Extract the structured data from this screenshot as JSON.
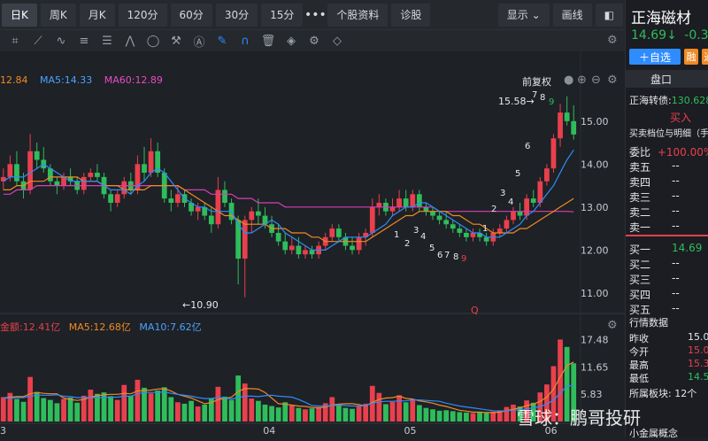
{
  "periods": [
    {
      "label": "日K",
      "active": true
    },
    {
      "label": "周K",
      "active": false
    },
    {
      "label": "月K",
      "active": false
    },
    {
      "label": "120分",
      "active": false
    },
    {
      "label": "60分",
      "active": false
    },
    {
      "label": "30分",
      "active": false
    },
    {
      "label": "15分",
      "active": false
    }
  ],
  "more_label": "•••",
  "top_tabs": [
    "个股资料",
    "诊股"
  ],
  "display_label": "显示",
  "draw_label": "画线",
  "price_legend": {
    "ma_prev": "12.84",
    "ma5": "MA5:14.33",
    "ma60": "MA60:12.89",
    "adjust": "前复权"
  },
  "price_axis": [
    "15.00",
    "14.00",
    "13.00",
    "12.00",
    "11.00"
  ],
  "annotations": {
    "high": "15.58→",
    "low": "←10.90",
    "q_marker": "Q"
  },
  "volume_legend": {
    "amount": "金额:12.41亿",
    "ma5": "MA5:12.68亿",
    "ma10": "MA10:7.62亿"
  },
  "volume_axis": [
    "17.48",
    "11.65",
    "5.83"
  ],
  "x_axis": [
    "3",
    "04",
    "05",
    "06"
  ],
  "td_counts_a": [
    "1",
    "2",
    "3",
    "4",
    "5",
    "6",
    "7",
    "8",
    "9"
  ],
  "td_counts_b": [
    "1",
    "2",
    "3",
    "4",
    "5",
    "6",
    "7",
    "8",
    "9"
  ],
  "stock": {
    "name": "正海磁材",
    "price": "14.69↓",
    "change": "-0.33",
    "add_watch": "＋自选",
    "tag1": "融",
    "tag2": "通"
  },
  "panel": {
    "tab": "盘口",
    "convert_label": "正海转债:",
    "convert_value": "130.628",
    "buy_label": "买入",
    "detail_label": "买卖档位与明细（手）",
    "ratio_label": "委比",
    "ratio_value": "+100.00%",
    "asks": [
      {
        "label": "卖五",
        "value": "--"
      },
      {
        "label": "卖四",
        "value": "--"
      },
      {
        "label": "卖三",
        "value": "--"
      },
      {
        "label": "卖二",
        "value": "--"
      },
      {
        "label": "卖一",
        "value": "--"
      }
    ],
    "bids": [
      {
        "label": "买一",
        "value": "14.69"
      },
      {
        "label": "买二",
        "value": "--"
      },
      {
        "label": "买三",
        "value": "--"
      },
      {
        "label": "买四",
        "value": "--"
      },
      {
        "label": "买五",
        "value": "--"
      }
    ],
    "quote_title": "行情数据",
    "quotes": [
      {
        "label": "昨收",
        "value": "15.02"
      },
      {
        "label": "今开",
        "value": "15.04"
      },
      {
        "label": "最高",
        "value": "15.37"
      },
      {
        "label": "最低",
        "value": "14.57"
      }
    ],
    "sector_label": "所属板块:",
    "sector_count": "12个",
    "concept": "小金属概念"
  },
  "watermark": "雪球：鹏哥投研",
  "colors": {
    "up": "#e8404d",
    "down": "#2fbd5c",
    "ma5": "#2f8cff",
    "ma10": "#f08a24",
    "ma60": "#d63fb5"
  },
  "chart_data": {
    "type": "candlestick",
    "y_range": [
      10.9,
      15.58
    ],
    "candles": [
      [
        13.6,
        13.9,
        13.4,
        13.7
      ],
      [
        13.7,
        14.2,
        13.6,
        14.0
      ],
      [
        14.0,
        14.3,
        13.5,
        13.6
      ],
      [
        13.6,
        13.8,
        13.2,
        13.4
      ],
      [
        13.4,
        14.7,
        13.3,
        14.3
      ],
      [
        14.3,
        14.5,
        13.9,
        14.1
      ],
      [
        14.1,
        14.4,
        13.8,
        13.9
      ],
      [
        13.9,
        14.0,
        13.5,
        13.6
      ],
      [
        13.6,
        13.7,
        13.3,
        13.5
      ],
      [
        13.5,
        13.8,
        13.4,
        13.7
      ],
      [
        13.7,
        13.9,
        13.5,
        13.6
      ],
      [
        13.6,
        13.7,
        13.3,
        13.4
      ],
      [
        13.4,
        13.8,
        13.3,
        13.7
      ],
      [
        13.7,
        13.9,
        13.6,
        13.8
      ],
      [
        13.8,
        14.0,
        13.6,
        13.7
      ],
      [
        13.7,
        13.8,
        13.2,
        13.3
      ],
      [
        13.3,
        13.4,
        12.9,
        13.1
      ],
      [
        13.1,
        13.4,
        13.0,
        13.3
      ],
      [
        13.3,
        13.7,
        13.2,
        13.6
      ],
      [
        13.6,
        13.8,
        13.3,
        13.4
      ],
      [
        13.4,
        14.2,
        13.3,
        14.0
      ],
      [
        14.0,
        14.4,
        13.6,
        13.8
      ],
      [
        13.8,
        14.6,
        13.7,
        14.3
      ],
      [
        14.3,
        14.5,
        13.7,
        13.8
      ],
      [
        13.8,
        13.9,
        13.1,
        13.2
      ],
      [
        13.2,
        13.4,
        12.9,
        13.1
      ],
      [
        13.1,
        13.5,
        13.0,
        13.3
      ],
      [
        13.3,
        13.4,
        13.0,
        13.1
      ],
      [
        13.1,
        13.2,
        12.8,
        12.9
      ],
      [
        12.9,
        13.1,
        12.7,
        13.0
      ],
      [
        13.0,
        13.1,
        12.7,
        12.8
      ],
      [
        12.8,
        13.0,
        12.4,
        12.6
      ],
      [
        12.6,
        13.7,
        12.5,
        13.4
      ],
      [
        13.4,
        13.6,
        13.0,
        13.1
      ],
      [
        13.1,
        13.2,
        12.6,
        12.7
      ],
      [
        12.7,
        12.8,
        11.2,
        11.8
      ],
      [
        11.8,
        12.8,
        10.9,
        12.7
      ],
      [
        12.7,
        13.0,
        12.4,
        12.9
      ],
      [
        12.9,
        13.2,
        12.6,
        12.8
      ],
      [
        12.8,
        13.0,
        12.5,
        12.6
      ],
      [
        12.6,
        12.8,
        12.3,
        12.4
      ],
      [
        12.4,
        12.6,
        12.1,
        12.2
      ],
      [
        12.2,
        12.4,
        11.9,
        12.0
      ],
      [
        12.0,
        12.3,
        11.9,
        12.1
      ],
      [
        12.1,
        12.3,
        11.8,
        11.9
      ],
      [
        11.9,
        12.1,
        11.8,
        12.0
      ],
      [
        12.0,
        12.1,
        11.8,
        11.9
      ],
      [
        11.9,
        12.2,
        11.8,
        12.1
      ],
      [
        12.1,
        12.4,
        12.0,
        12.3
      ],
      [
        12.3,
        12.6,
        12.2,
        12.5
      ],
      [
        12.5,
        12.6,
        12.2,
        12.3
      ],
      [
        12.3,
        12.4,
        12.0,
        12.1
      ],
      [
        12.1,
        12.3,
        11.9,
        12.0
      ],
      [
        12.0,
        12.4,
        11.9,
        12.3
      ],
      [
        12.3,
        12.5,
        12.1,
        12.4
      ],
      [
        12.4,
        13.2,
        12.3,
        13.0
      ],
      [
        13.0,
        13.3,
        12.8,
        13.1
      ],
      [
        13.1,
        13.2,
        12.8,
        12.9
      ],
      [
        12.9,
        13.2,
        12.8,
        13.0
      ],
      [
        13.0,
        13.4,
        12.9,
        13.2
      ],
      [
        13.2,
        13.4,
        12.9,
        13.0
      ],
      [
        13.0,
        13.4,
        12.9,
        13.3
      ],
      [
        13.3,
        13.4,
        12.9,
        13.0
      ],
      [
        13.0,
        13.1,
        12.8,
        12.9
      ],
      [
        12.9,
        13.0,
        12.7,
        12.8
      ],
      [
        12.8,
        12.9,
        12.6,
        12.7
      ],
      [
        12.7,
        12.9,
        12.5,
        12.6
      ],
      [
        12.6,
        12.7,
        12.4,
        12.5
      ],
      [
        12.5,
        12.6,
        12.3,
        12.4
      ],
      [
        12.4,
        12.5,
        12.2,
        12.3
      ],
      [
        12.3,
        12.5,
        12.2,
        12.4
      ],
      [
        12.4,
        12.5,
        12.2,
        12.3
      ],
      [
        12.3,
        12.4,
        12.1,
        12.2
      ],
      [
        12.2,
        12.5,
        12.1,
        12.4
      ],
      [
        12.4,
        12.6,
        12.3,
        12.5
      ],
      [
        12.5,
        12.8,
        12.4,
        12.7
      ],
      [
        12.7,
        13.0,
        12.6,
        12.9
      ],
      [
        12.9,
        13.1,
        12.7,
        12.8
      ],
      [
        12.8,
        13.3,
        12.7,
        13.2
      ],
      [
        13.2,
        13.4,
        13.0,
        13.1
      ],
      [
        13.1,
        13.7,
        13.0,
        13.6
      ],
      [
        13.6,
        14.0,
        13.5,
        13.9
      ],
      [
        13.9,
        14.7,
        13.8,
        14.6
      ],
      [
        14.6,
        15.4,
        14.4,
        15.2
      ],
      [
        15.2,
        15.58,
        14.9,
        15.0
      ],
      [
        15.0,
        15.37,
        14.57,
        14.69
      ]
    ],
    "ma5": [
      13.6,
      13.7,
      13.7,
      13.7,
      13.8,
      13.9,
      14.0,
      13.9,
      13.8,
      13.7,
      13.6,
      13.6,
      13.6,
      13.6,
      13.6,
      13.5,
      13.4,
      13.4,
      13.4,
      13.3,
      13.5,
      13.6,
      13.8,
      13.9,
      13.8,
      13.6,
      13.4,
      13.2,
      13.1,
      13.0,
      13.0,
      12.9,
      12.9,
      12.9,
      12.9,
      12.6,
      12.4,
      12.4,
      12.5,
      12.6,
      12.7,
      12.6,
      12.4,
      12.3,
      12.2,
      12.1,
      12.0,
      12.0,
      12.0,
      12.1,
      12.2,
      12.3,
      12.3,
      12.3,
      12.3,
      12.4,
      12.5,
      12.6,
      12.8,
      12.9,
      13.0,
      13.0,
      13.1,
      13.1,
      13.0,
      12.9,
      12.8,
      12.7,
      12.6,
      12.5,
      12.4,
      12.4,
      12.3,
      12.3,
      12.3,
      12.4,
      12.5,
      12.6,
      12.8,
      12.9,
      13.1,
      13.3,
      13.5,
      13.8,
      14.1,
      14.33
    ],
    "ma10": [
      13.4,
      13.4,
      13.5,
      13.5,
      13.6,
      13.6,
      13.6,
      13.7,
      13.7,
      13.7,
      13.7,
      13.7,
      13.6,
      13.6,
      13.6,
      13.5,
      13.5,
      13.5,
      13.4,
      13.4,
      13.4,
      13.4,
      13.5,
      13.5,
      13.5,
      13.5,
      13.5,
      13.4,
      13.3,
      13.2,
      13.1,
      13.0,
      12.9,
      12.8,
      12.8,
      12.7,
      12.6,
      12.6,
      12.6,
      12.6,
      12.5,
      12.5,
      12.5,
      12.4,
      12.4,
      12.4,
      12.3,
      12.3,
      12.2,
      12.2,
      12.2,
      12.2,
      12.2,
      12.2,
      12.2,
      12.3,
      12.4,
      12.5,
      12.6,
      12.7,
      12.8,
      12.8,
      12.9,
      12.9,
      12.9,
      12.9,
      12.9,
      12.8,
      12.8,
      12.7,
      12.6,
      12.6,
      12.5,
      12.4,
      12.4,
      12.4,
      12.4,
      12.5,
      12.5,
      12.6,
      12.7,
      12.8,
      12.9,
      13.0,
      13.1,
      13.2
    ],
    "ma60": [
      13.3,
      13.3,
      13.4,
      13.4,
      13.4,
      13.5,
      13.5,
      13.5,
      13.5,
      13.5,
      13.5,
      13.5,
      13.5,
      13.5,
      13.5,
      13.5,
      13.5,
      13.5,
      13.5,
      13.5,
      13.5,
      13.5,
      13.5,
      13.5,
      13.5,
      13.5,
      13.5,
      13.4,
      13.4,
      13.4,
      13.4,
      13.3,
      13.3,
      13.3,
      13.3,
      13.2,
      13.2,
      13.2,
      13.1,
      13.1,
      13.1,
      13.1,
      13.0,
      13.0,
      13.0,
      13.0,
      13.0,
      13.0,
      13.0,
      13.0,
      13.0,
      13.0,
      13.0,
      13.0,
      13.0,
      13.0,
      13.0,
      13.0,
      13.0,
      13.0,
      13.0,
      13.0,
      13.0,
      13.0,
      13.0,
      12.9,
      12.9,
      12.9,
      12.9,
      12.9,
      12.9,
      12.9,
      12.9,
      12.9,
      12.9,
      12.9,
      12.9,
      12.9,
      12.9,
      12.9,
      12.9,
      12.9,
      12.9,
      12.9,
      12.9,
      12.89
    ],
    "volume": [
      5.2,
      6.1,
      4.8,
      4.2,
      9.5,
      6.3,
      5.0,
      4.6,
      3.9,
      4.8,
      5.1,
      4.0,
      5.5,
      6.8,
      5.9,
      6.2,
      5.4,
      4.6,
      7.8,
      5.5,
      8.9,
      7.2,
      6.0,
      6.6,
      7.3,
      5.2,
      4.1,
      3.8,
      4.4,
      3.2,
      3.6,
      4.9,
      7.4,
      5.3,
      4.6,
      9.8,
      8.1,
      4.9,
      4.4,
      3.6,
      3.3,
      3.0,
      4.1,
      3.4,
      2.9,
      2.6,
      2.8,
      3.1,
      3.9,
      5.2,
      3.6,
      2.9,
      2.7,
      3.4,
      3.8,
      7.6,
      6.1,
      3.7,
      4.2,
      5.6,
      4.1,
      4.7,
      3.5,
      2.9,
      2.6,
      2.3,
      2.4,
      2.2,
      2.0,
      1.9,
      1.8,
      2.0,
      1.8,
      2.1,
      2.4,
      3.1,
      3.6,
      3.2,
      4.5,
      4.0,
      6.2,
      7.9,
      11.8,
      17.48,
      15.9,
      12.41
    ],
    "vol_ma5": [
      5.0,
      5.2,
      5.3,
      5.3,
      5.9,
      6.2,
      6.0,
      5.9,
      5.9,
      5.0,
      4.7,
      4.5,
      4.7,
      5.2,
      5.5,
      5.7,
      5.8,
      5.8,
      6.0,
      5.9,
      6.5,
      6.6,
      6.7,
      6.9,
      7.0,
      6.5,
      5.8,
      5.4,
      5.0,
      4.4,
      3.8,
      4.0,
      4.7,
      4.9,
      5.2,
      6.4,
      7.0,
      7.0,
      6.9,
      6.2,
      5.0,
      3.8,
      3.7,
      3.5,
      3.3,
      3.2,
      3.0,
      2.9,
      3.1,
      3.5,
      3.7,
      3.8,
      3.8,
      3.6,
      3.3,
      4.1,
      4.7,
      5.0,
      5.1,
      5.4,
      4.9,
      4.8,
      4.4,
      4.2,
      3.9,
      3.5,
      3.2,
      2.8,
      2.4,
      2.2,
      2.0,
      2.0,
      1.9,
      1.9,
      2.0,
      2.3,
      2.6,
      2.9,
      3.4,
      3.7,
      4.3,
      5.2,
      6.9,
      9.5,
      11.9,
      12.68
    ],
    "vol_ma10": [
      5.0,
      5.0,
      5.1,
      5.1,
      5.4,
      5.6,
      5.6,
      5.6,
      5.7,
      5.4,
      5.3,
      5.1,
      5.1,
      5.1,
      5.1,
      5.1,
      5.2,
      5.2,
      5.4,
      5.4,
      5.9,
      6.2,
      6.2,
      6.2,
      6.3,
      6.0,
      5.8,
      5.6,
      5.4,
      5.1,
      4.9,
      4.9,
      5.1,
      5.0,
      4.8,
      5.1,
      5.4,
      5.4,
      5.3,
      5.5,
      5.6,
      5.4,
      5.3,
      5.2,
      4.7,
      4.1,
      3.4,
      3.3,
      3.3,
      3.4,
      3.5,
      3.4,
      3.3,
      3.3,
      3.4,
      3.9,
      4.2,
      4.3,
      4.3,
      4.4,
      4.4,
      4.6,
      4.6,
      4.5,
      4.4,
      4.3,
      3.9,
      3.6,
      3.3,
      3.1,
      2.9,
      2.7,
      2.5,
      2.3,
      2.2,
      2.3,
      2.4,
      2.5,
      2.7,
      2.9,
      3.2,
      3.7,
      4.6,
      6.0,
      7.6,
      7.62
    ]
  }
}
